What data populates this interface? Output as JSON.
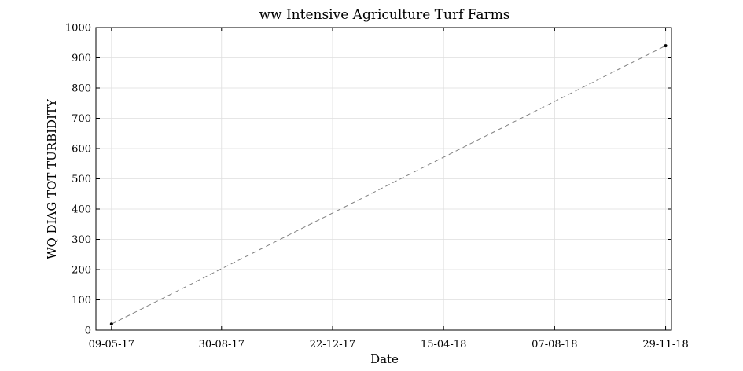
{
  "chart_data": {
    "type": "line",
    "title": "ww Intensive Agriculture Turf Farms",
    "xlabel": "Date",
    "ylabel": "WQ DIAG TOT TURBIDITY",
    "x_ticks": [
      "09-05-17",
      "30-08-17",
      "22-12-17",
      "15-04-18",
      "07-08-18",
      "29-11-18"
    ],
    "xlim": [
      "2017-04-23",
      "2018-12-05"
    ],
    "ylim": [
      0,
      1000
    ],
    "y_ticks": [
      0,
      100,
      200,
      300,
      400,
      500,
      600,
      700,
      800,
      900,
      1000
    ],
    "grid": true,
    "series": [
      {
        "x": [
          "2017-05-09",
          "2018-11-29"
        ],
        "y": [
          20,
          940
        ],
        "line_style": "dashed",
        "line_color": "#808080",
        "marker_color": "#000000"
      }
    ]
  }
}
